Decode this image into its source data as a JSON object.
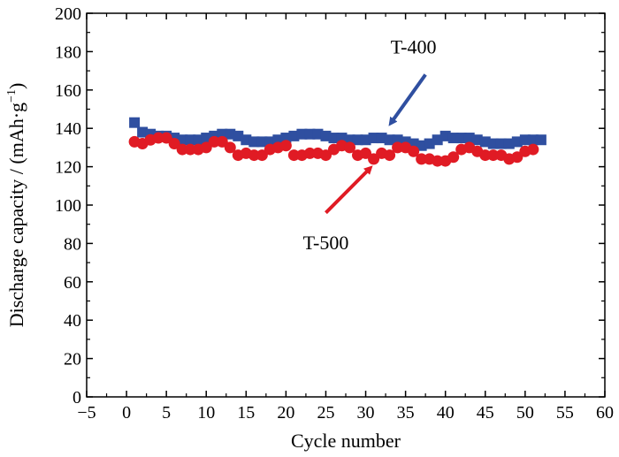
{
  "chart_data": {
    "type": "scatter",
    "xlabel": "Cycle number",
    "ylabel": "Discharge capacity / (mAh·g",
    "ylabel_sup": "−1",
    "ylabel_close": ")",
    "xlim": [
      -5,
      60
    ],
    "ylim": [
      0,
      200
    ],
    "xticks": [
      -5,
      0,
      5,
      10,
      15,
      20,
      25,
      30,
      35,
      40,
      45,
      50,
      55,
      60
    ],
    "yticks": [
      0,
      20,
      40,
      60,
      80,
      100,
      120,
      140,
      160,
      180,
      200
    ],
    "xtick_labels": [
      "−5",
      "0",
      "5",
      "10",
      "15",
      "20",
      "25",
      "30",
      "35",
      "40",
      "45",
      "50",
      "55",
      "60"
    ],
    "ytick_labels": [
      "0",
      "20",
      "40",
      "60",
      "80",
      "100",
      "120",
      "140",
      "160",
      "180",
      "200"
    ],
    "grid": false,
    "series": [
      {
        "name": "T-400",
        "marker": "square",
        "color": "#2f4fa0",
        "x": [
          1,
          2,
          3,
          4,
          5,
          6,
          7,
          8,
          9,
          10,
          11,
          12,
          13,
          14,
          15,
          16,
          17,
          18,
          19,
          20,
          21,
          22,
          23,
          24,
          25,
          26,
          27,
          28,
          29,
          30,
          31,
          32,
          33,
          34,
          35,
          36,
          37,
          38,
          39,
          40,
          41,
          42,
          43,
          44,
          45,
          46,
          47,
          48,
          49,
          50,
          51,
          52
        ],
        "y": [
          143,
          138,
          137,
          136,
          136,
          135,
          134,
          134,
          134,
          135,
          136,
          137,
          137,
          136,
          134,
          133,
          133,
          133,
          134,
          135,
          136,
          137,
          137,
          137,
          136,
          135,
          135,
          134,
          134,
          134,
          135,
          135,
          134,
          134,
          133,
          132,
          131,
          132,
          134,
          136,
          135,
          135,
          135,
          134,
          133,
          132,
          132,
          132,
          133,
          134,
          134,
          134
        ]
      },
      {
        "name": "T-500",
        "marker": "circle",
        "color": "#e01b24",
        "x": [
          1,
          2,
          3,
          4,
          5,
          6,
          7,
          8,
          9,
          10,
          11,
          12,
          13,
          14,
          15,
          16,
          17,
          18,
          19,
          20,
          21,
          22,
          23,
          24,
          25,
          26,
          27,
          28,
          29,
          30,
          31,
          32,
          33,
          34,
          35,
          36,
          37,
          38,
          39,
          40,
          41,
          42,
          43,
          44,
          45,
          46,
          47,
          48,
          49,
          50,
          51
        ],
        "y": [
          133,
          132,
          134,
          135,
          135,
          132,
          129,
          129,
          129,
          130,
          133,
          133,
          130,
          126,
          127,
          126,
          126,
          129,
          130,
          131,
          126,
          126,
          127,
          127,
          126,
          129,
          131,
          130,
          126,
          127,
          124,
          127,
          126,
          130,
          130,
          128,
          124,
          124,
          123,
          123,
          125,
          129,
          130,
          128,
          126,
          126,
          126,
          124,
          125,
          128,
          129
        ]
      }
    ],
    "annotations": [
      {
        "text": "T-400",
        "target_series": "T-400",
        "arrow_color": "#2f4fa0"
      },
      {
        "text": "T-500",
        "target_series": "T-500",
        "arrow_color": "#e01b24"
      }
    ]
  }
}
